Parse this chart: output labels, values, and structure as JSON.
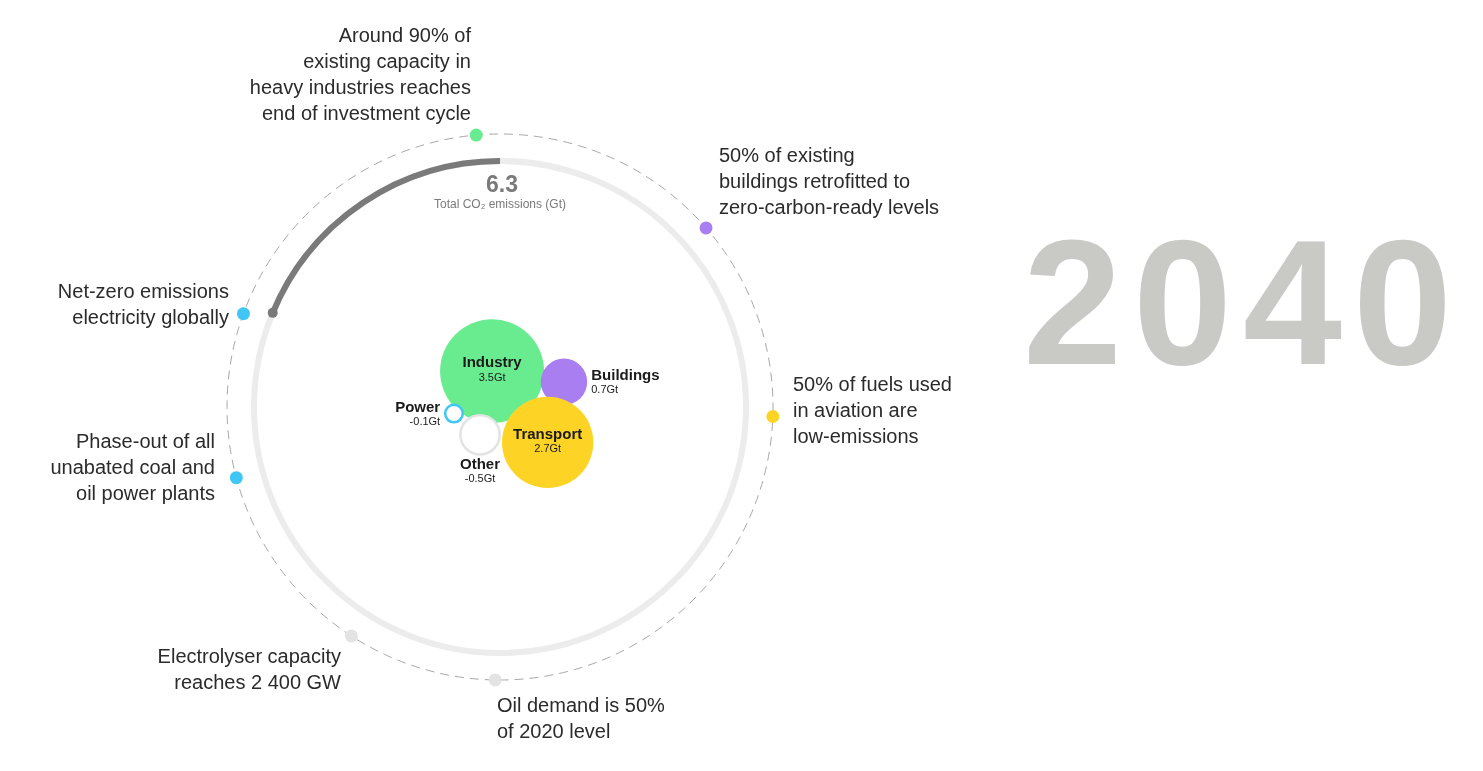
{
  "chart_data": {
    "type": "other",
    "title": "2040",
    "categories": [
      "Industry",
      "Buildings",
      "Transport",
      "Other",
      "Power"
    ],
    "values": [
      3.5,
      0.7,
      2.7,
      -0.5,
      -0.1
    ],
    "colors": [
      "#69ec8f",
      "#a97ef0",
      "#fdd426",
      "#e3e3e3",
      "#40c6f4"
    ],
    "value_labels": [
      "3.5Gt",
      "0.7Gt",
      "2.7Gt",
      "-0.5Gt",
      "-0.1Gt"
    ],
    "annotations": [
      "Around 90% of existing capacity in heavy industries reaches end of investment cycle",
      "50% of existing buildings retrofitted to zero-carbon-ready levels",
      "50% of fuels used in aviation are low-emissions",
      "Oil demand is 50% of 2020 level",
      "Electrolyser capacity reaches 2 400 GW",
      "Phase-out of all unabated coal and oil power plants",
      "Net-zero emissions electricity globally",
      "6.3",
      "Total CO₂ emissions (Gt)"
    ]
  }
}
